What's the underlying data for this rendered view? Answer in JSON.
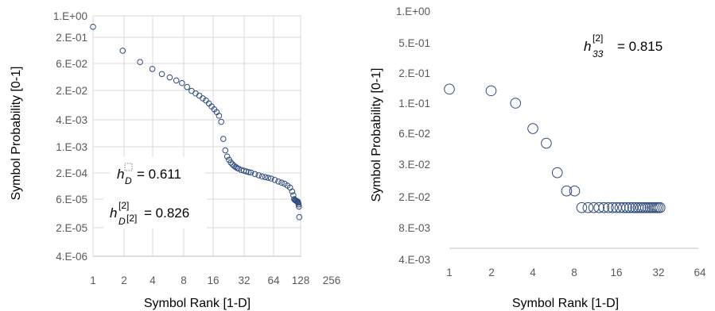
{
  "chart_data": [
    {
      "type": "scatter",
      "xlabel": "Symbol Rank [1-D]",
      "ylabel": "Symbol Probability [0-1]",
      "x_scale": "log2",
      "y_scale": "log",
      "x_ticks": [
        "1",
        "2",
        "4",
        "8",
        "16",
        "32",
        "64",
        "128",
        "256"
      ],
      "y_ticks": [
        "1.E+00",
        "2.E-01",
        "6.E-02",
        "2.E-02",
        "4.E-03",
        "1.E-03",
        "2.E-04",
        "6.E-05",
        "2.E-05",
        "4.E-06"
      ],
      "grid": true,
      "marker_color": "#2f4b7c",
      "annotations": [
        {
          "base": "h",
          "sub": "D",
          "sup": "",
          "value": "= 0.611"
        },
        {
          "base": "h",
          "sub": "D",
          "sub_sup": "[2]",
          "sup": "[2]",
          "value": "= 0.826"
        }
      ],
      "series": [
        {
          "x": [
            1,
            2,
            3,
            4,
            5,
            6,
            7,
            8,
            9,
            10,
            11,
            12,
            13,
            14,
            15,
            16,
            17,
            18,
            19,
            20,
            21,
            22,
            23,
            24,
            25,
            26,
            27,
            28,
            29,
            30,
            32,
            34,
            36,
            38,
            40,
            44,
            48,
            52,
            56,
            60,
            64,
            70,
            76,
            82,
            88,
            94,
            100,
            105,
            108,
            110,
            112,
            114,
            116,
            118,
            120,
            121,
            122,
            123,
            124
          ],
          "y": [
            0.44,
            0.108,
            0.064,
            0.048,
            0.039,
            0.034,
            0.03,
            0.027,
            0.023,
            0.0195,
            0.017,
            0.015,
            0.013,
            0.0115,
            0.0098,
            0.0083,
            0.0071,
            0.0061,
            0.005,
            0.0036,
            0.0015,
            0.0008,
            0.00055,
            0.00045,
            0.00038,
            0.00034,
            0.00031,
            0.00029,
            0.00027,
            0.00026,
            0.00024,
            0.00023,
            0.00022,
            0.00021,
            0.000205,
            0.00019,
            0.00018,
            0.00017,
            0.000165,
            0.00016,
            0.000155,
            0.000145,
            0.000135,
            0.000128,
            0.000122,
            0.000112,
            0.000102,
            8.5e-05,
            7.2e-05,
            6e-05,
            5.8e-05,
            5.7e-05,
            5.6e-05,
            5.5e-05,
            5.4e-05,
            5.2e-05,
            4.9e-05,
            4.5e-05,
            3e-05
          ]
        }
      ]
    },
    {
      "type": "scatter",
      "xlabel": "Symbol Rank [1-D]",
      "ylabel": "Symbol Probability [0-1]",
      "x_scale": "log2",
      "y_scale": "log",
      "x_ticks": [
        "1",
        "2",
        "4",
        "8",
        "16",
        "32",
        "64"
      ],
      "y_ticks": [
        "1.E+00",
        "5.E-01",
        "2.E-01",
        "1.E-01",
        "6.E-02",
        "3.E-02",
        "2.E-02",
        "8.E-03",
        "4.E-03"
      ],
      "grid": false,
      "marker_color": "#2f4b7c",
      "annotations": [
        {
          "base": "h",
          "sub": "33",
          "sup": "[2]",
          "value": "= 0.815"
        }
      ],
      "series": [
        {
          "x": [
            1,
            2,
            3,
            4,
            5,
            6,
            7,
            8,
            9,
            10,
            11,
            12,
            13,
            14,
            15,
            16,
            17,
            18,
            19,
            20,
            21,
            22,
            23,
            24,
            25,
            26,
            27,
            28,
            29,
            30,
            31,
            32,
            33
          ],
          "y": [
            0.138,
            0.133,
            0.1,
            0.065,
            0.048,
            0.027,
            0.0215,
            0.0215,
            0.0145,
            0.0145,
            0.0145,
            0.0145,
            0.0145,
            0.0145,
            0.0145,
            0.0145,
            0.0145,
            0.0145,
            0.0145,
            0.0145,
            0.0145,
            0.0145,
            0.0145,
            0.0145,
            0.0145,
            0.0145,
            0.0145,
            0.0145,
            0.0145,
            0.0145,
            0.0145,
            0.0145,
            0.0145
          ]
        }
      ]
    }
  ]
}
